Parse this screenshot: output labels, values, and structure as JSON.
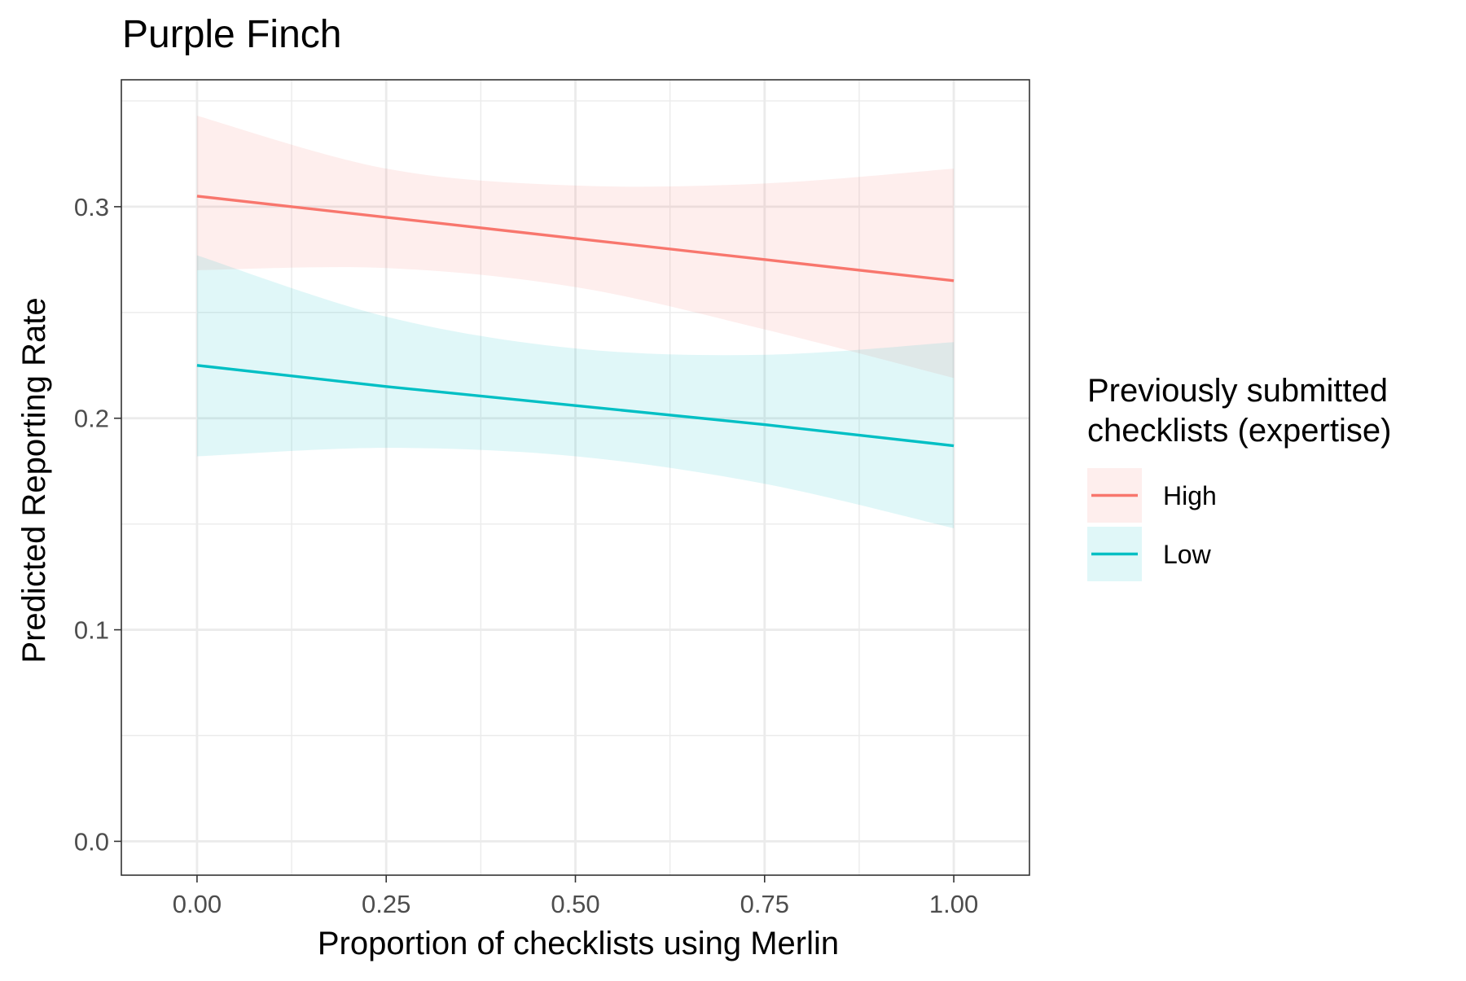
{
  "chart_data": {
    "type": "line",
    "title": "Purple Finch",
    "xlabel": "Proportion of checklists using Merlin",
    "ylabel": "Predicted Reporting Rate",
    "xlim": [
      -0.1,
      1.1
    ],
    "ylim": [
      -0.016,
      0.36
    ],
    "x_ticks": [
      0.0,
      0.25,
      0.5,
      0.75,
      1.0
    ],
    "x_tick_labels": [
      "0.00",
      "0.25",
      "0.50",
      "0.75",
      "1.00"
    ],
    "y_ticks": [
      0.0,
      0.1,
      0.2,
      0.3
    ],
    "y_tick_labels": [
      "0.0",
      "0.1",
      "0.2",
      "0.3"
    ],
    "grid": true,
    "legend": {
      "title_line1": "Previously submitted",
      "title_line2": "checklists (expertise)",
      "placement": "right"
    },
    "x": [
      0.0,
      0.25,
      0.5,
      0.75,
      1.0
    ],
    "series": [
      {
        "name": "High",
        "color": "#F8766D",
        "values": [
          0.305,
          0.295,
          0.285,
          0.275,
          0.265
        ],
        "lower": [
          0.27,
          0.271,
          0.262,
          0.242,
          0.219
        ],
        "upper": [
          0.343,
          0.318,
          0.31,
          0.311,
          0.318
        ]
      },
      {
        "name": "Low",
        "color": "#00BFC4",
        "values": [
          0.225,
          0.215,
          0.206,
          0.197,
          0.187
        ],
        "lower": [
          0.182,
          0.186,
          0.182,
          0.169,
          0.148
        ],
        "upper": [
          0.277,
          0.248,
          0.233,
          0.23,
          0.236
        ]
      }
    ]
  }
}
